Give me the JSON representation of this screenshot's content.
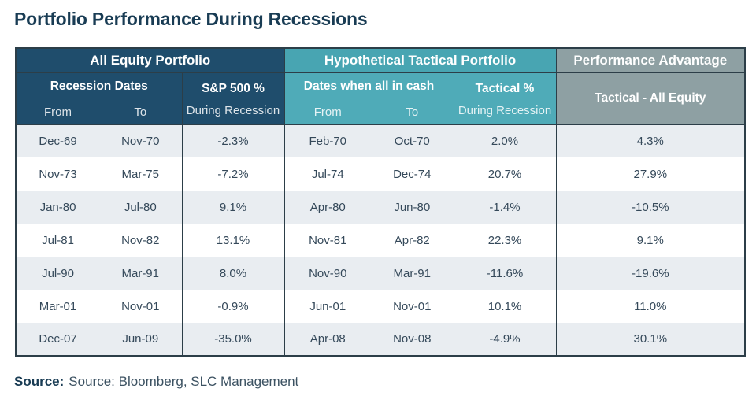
{
  "page": {
    "title": "Portfolio Performance During Recessions",
    "source_label": "Source:",
    "source_text": "Source: Bloomberg, SLC Management"
  },
  "colors": {
    "navy_header": "#1f4d6c",
    "teal_group_header": "#48a5b2",
    "teal_sub_header": "#4fabb8",
    "gray_header": "#8ea0a3",
    "row_alt": "#e9edf1",
    "border": "#2c3e48",
    "body_text": "#35495a",
    "title_text": "#193c54"
  },
  "table": {
    "groups": [
      {
        "label": "All Equity Portfolio"
      },
      {
        "label": "Hypothetical Tactical Portfolio"
      },
      {
        "label": "Performance Advantage"
      }
    ],
    "subheaders": {
      "recession_dates": "Recession Dates",
      "sp500_line1": "S&P 500 %",
      "sp500_line2": "During Recession",
      "cash_dates": "Dates when all in cash",
      "tactical_line1": "Tactical %",
      "tactical_line2": "During Recession",
      "advantage": "Tactical - All Equity",
      "from": "From",
      "to": "To"
    }
  },
  "chart_data": {
    "type": "table",
    "title": "Portfolio Performance During Recessions",
    "column_groups": [
      "All Equity Portfolio",
      "Hypothetical Tactical Portfolio",
      "Performance Advantage"
    ],
    "columns": [
      "Recession From",
      "Recession To",
      "S&P 500 % During Recession",
      "Cash From",
      "Cash To",
      "Tactical % During Recession",
      "Tactical - All Equity"
    ],
    "rows": [
      [
        "Dec-69",
        "Nov-70",
        "-2.3%",
        "Feb-70",
        "Oct-70",
        "2.0%",
        "4.3%"
      ],
      [
        "Nov-73",
        "Mar-75",
        "-7.2%",
        "Jul-74",
        "Dec-74",
        "20.7%",
        "27.9%"
      ],
      [
        "Jan-80",
        "Jul-80",
        "9.1%",
        "Apr-80",
        "Jun-80",
        "-1.4%",
        "-10.5%"
      ],
      [
        "Jul-81",
        "Nov-82",
        "13.1%",
        "Nov-81",
        "Apr-82",
        "22.3%",
        "9.1%"
      ],
      [
        "Jul-90",
        "Mar-91",
        "8.0%",
        "Nov-90",
        "Mar-91",
        "-11.6%",
        "-19.6%"
      ],
      [
        "Mar-01",
        "Nov-01",
        "-0.9%",
        "Jun-01",
        "Nov-01",
        "10.1%",
        "11.0%"
      ],
      [
        "Dec-07",
        "Jun-09",
        "-35.0%",
        "Apr-08",
        "Nov-08",
        "-4.9%",
        "30.1%"
      ]
    ]
  }
}
